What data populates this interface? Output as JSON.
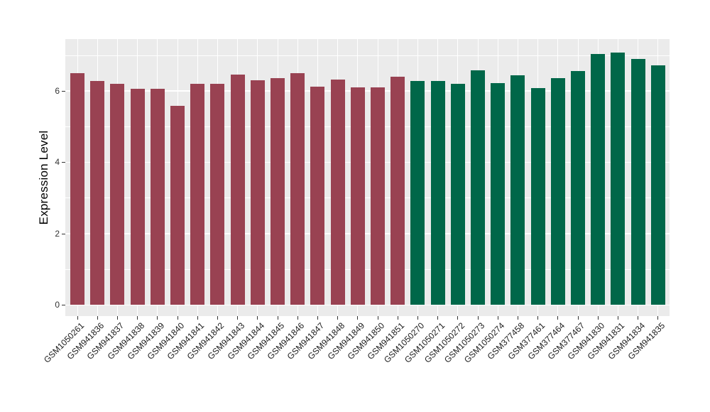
{
  "chart_data": {
    "type": "bar",
    "title": "",
    "xlabel": "",
    "ylabel": "Expression Level",
    "yticks": [
      0,
      2,
      4,
      6
    ],
    "minor_gridlines": [
      1,
      3,
      5,
      7
    ],
    "ylim": [
      -0.32,
      7.43
    ],
    "grid": true,
    "legend": false,
    "panel_bg": "#EBEBEB",
    "grid_color": "#FFFFFF",
    "group_colors": {
      "left_group": "#994252",
      "right_group": "#006749"
    },
    "categories": [
      "GSM1050261",
      "GSM941836",
      "GSM941837",
      "GSM941838",
      "GSM941839",
      "GSM941840",
      "GSM941841",
      "GSM941842",
      "GSM941843",
      "GSM941844",
      "GSM941845",
      "GSM941846",
      "GSM941847",
      "GSM941848",
      "GSM941849",
      "GSM941850",
      "GSM941851",
      "GSM1050270",
      "GSM1050271",
      "GSM1050272",
      "GSM1050273",
      "GSM1050274",
      "GSM377458",
      "GSM377461",
      "GSM377464",
      "GSM377467",
      "GSM941830",
      "GSM941831",
      "GSM941834",
      "GSM941835"
    ],
    "values": [
      6.5,
      6.28,
      6.2,
      6.05,
      6.05,
      5.57,
      6.19,
      6.19,
      6.46,
      6.3,
      6.36,
      6.5,
      6.12,
      6.31,
      6.1,
      6.1,
      6.4,
      6.28,
      6.28,
      6.2,
      6.58,
      6.21,
      6.43,
      6.08,
      6.35,
      6.55,
      7.03,
      7.08,
      6.9,
      6.71
    ],
    "bar_colors": [
      "#994252",
      "#994252",
      "#994252",
      "#994252",
      "#994252",
      "#994252",
      "#994252",
      "#994252",
      "#994252",
      "#994252",
      "#994252",
      "#994252",
      "#994252",
      "#994252",
      "#994252",
      "#994252",
      "#994252",
      "#006749",
      "#006749",
      "#006749",
      "#006749",
      "#006749",
      "#006749",
      "#006749",
      "#006749",
      "#006749",
      "#006749",
      "#006749",
      "#006749",
      "#006749"
    ]
  }
}
